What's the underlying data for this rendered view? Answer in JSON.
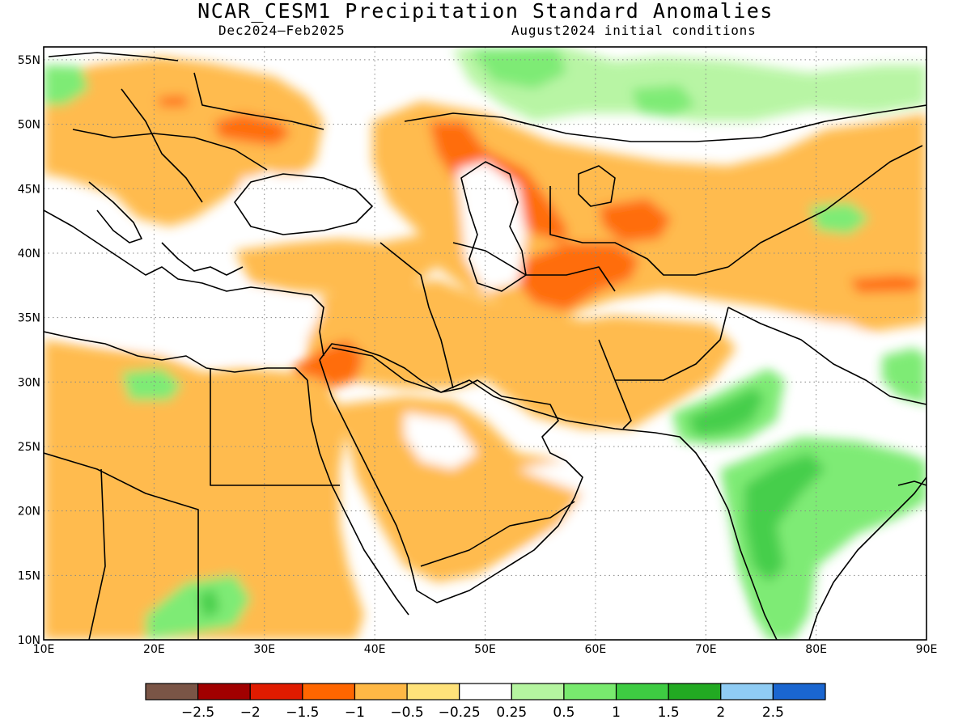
{
  "title": "NCAR_CESM1 Precipitation Standard Anomalies",
  "season": "Dec2024–Feb2025",
  "init": "August2024 initial conditions",
  "map": {
    "lon_range": [
      10,
      90
    ],
    "lat_range": [
      10,
      56
    ],
    "lon_ticks": [
      {
        "value": 10,
        "label": "10E"
      },
      {
        "value": 20,
        "label": "20E"
      },
      {
        "value": 30,
        "label": "30E"
      },
      {
        "value": 40,
        "label": "40E"
      },
      {
        "value": 50,
        "label": "50E"
      },
      {
        "value": 60,
        "label": "60E"
      },
      {
        "value": 70,
        "label": "70E"
      },
      {
        "value": 80,
        "label": "80E"
      },
      {
        "value": 90,
        "label": "90E"
      }
    ],
    "lat_ticks": [
      {
        "value": 10,
        "label": "10N"
      },
      {
        "value": 15,
        "label": "15N"
      },
      {
        "value": 20,
        "label": "20N"
      },
      {
        "value": 25,
        "label": "25N"
      },
      {
        "value": 30,
        "label": "30N"
      },
      {
        "value": 35,
        "label": "35N"
      },
      {
        "value": 40,
        "label": "40N"
      },
      {
        "value": 45,
        "label": "45N"
      },
      {
        "value": 50,
        "label": "50N"
      },
      {
        "value": 55,
        "label": "55N"
      }
    ],
    "gridlines": "dotted"
  },
  "colorbar": {
    "colors": [
      "#7a5546",
      "#a10000",
      "#e01b00",
      "#ff6600",
      "#ffb845",
      "#ffe27a",
      "#ffffff",
      "#b5f5a0",
      "#78ea6e",
      "#3ecc42",
      "#22aa22",
      "#8fccf4",
      "#1a66d0"
    ],
    "labels": [
      "−2.5",
      "−2",
      "−1.5",
      "−1",
      "−0.5",
      "−0.25",
      "0.25",
      "0.5",
      "1",
      "1.5",
      "2",
      "2.5"
    ]
  },
  "anomaly_regions": [
    {
      "name": "europe-dry",
      "level": -0.5,
      "color": "#ffb845",
      "lon": [
        12,
        40
      ],
      "lat": [
        42,
        54
      ]
    },
    {
      "name": "central-europe-core",
      "level": -1,
      "color": "#ff6600",
      "lon": [
        26,
        33
      ],
      "lat": [
        47,
        50
      ]
    },
    {
      "name": "central-asia-dry",
      "level": -0.5,
      "color": "#ffb845",
      "lon": [
        40,
        90
      ],
      "lat": [
        34,
        51
      ]
    },
    {
      "name": "kazakh-core",
      "level": -1,
      "color": "#ff6600",
      "lon": [
        47,
        66
      ],
      "lat": [
        36,
        49
      ]
    },
    {
      "name": "iran-dry",
      "level": -0.5,
      "color": "#ffb845",
      "lon": [
        38,
        69
      ],
      "lat": [
        25,
        40
      ]
    },
    {
      "name": "levant-core",
      "level": -1,
      "color": "#ff6600",
      "lon": [
        34,
        38
      ],
      "lat": [
        28,
        32
      ]
    },
    {
      "name": "sahara-dry",
      "level": -0.5,
      "color": "#ffb845",
      "lon": [
        10,
        40
      ],
      "lat": [
        10,
        32
      ]
    },
    {
      "name": "arabia-dry",
      "level": -0.5,
      "color": "#ffb845",
      "lon": [
        39,
        55
      ],
      "lat": [
        13,
        27
      ]
    },
    {
      "name": "pakistan-wet",
      "level": 1,
      "color": "#78ea6e",
      "lon": [
        66,
        78
      ],
      "lat": [
        24,
        32
      ]
    },
    {
      "name": "india-wet",
      "level": 1,
      "color": "#78ea6e",
      "lon": [
        70,
        88
      ],
      "lat": [
        11,
        26
      ]
    },
    {
      "name": "russia-wet",
      "level": 0.5,
      "color": "#b5f5a0",
      "lon": [
        50,
        75
      ],
      "lat": [
        49,
        56
      ]
    },
    {
      "name": "himalaya-wet",
      "level": 1,
      "color": "#78ea6e",
      "lon": [
        83,
        90
      ],
      "lat": [
        27,
        32
      ]
    }
  ]
}
